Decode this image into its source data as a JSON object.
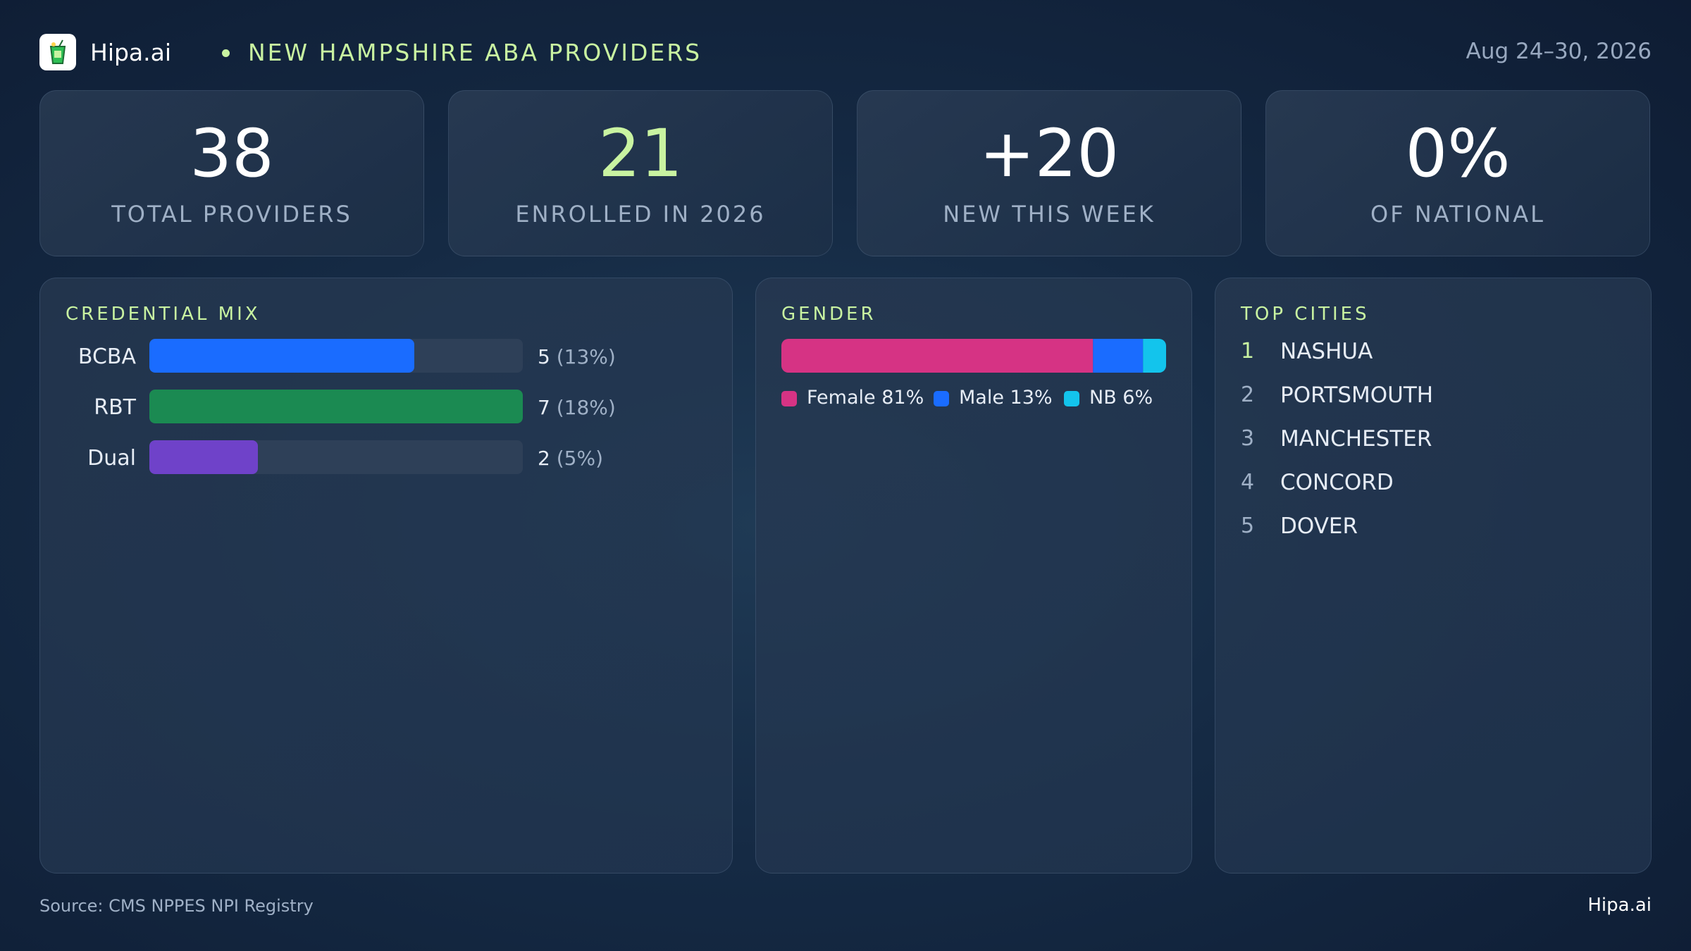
{
  "header": {
    "brand": "Hipa.ai",
    "title": "NEW HAMPSHIRE ABA PROVIDERS",
    "date_range": "Aug 24–30, 2026"
  },
  "kpis": [
    {
      "value": "38",
      "label": "TOTAL PROVIDERS"
    },
    {
      "value": "21",
      "label": "ENROLLED IN 2026"
    },
    {
      "value": "+20",
      "label": "NEW THIS WEEK"
    },
    {
      "value": "0%",
      "label": "OF NATIONAL"
    }
  ],
  "credential_mix": {
    "title": "CREDENTIAL MIX",
    "items": [
      {
        "label": "BCBA",
        "count": "5",
        "pct": "(13%)",
        "level": 0.71,
        "color": "#1a6cff"
      },
      {
        "label": "RBT",
        "count": "7",
        "pct": "(18%)",
        "level": 1.0,
        "color": "#1b8a52"
      },
      {
        "label": "Dual",
        "count": "2",
        "pct": "(5%)",
        "level": 0.29,
        "color": "#6f42c9"
      }
    ]
  },
  "gender": {
    "title": "GENDER",
    "segments": [
      {
        "label": "Female 81%",
        "share": 81,
        "color": "#d63384"
      },
      {
        "label": "Male 13%",
        "share": 13,
        "color": "#1a6cff"
      },
      {
        "label": "NB 6%",
        "share": 6,
        "color": "#13c4ec"
      }
    ]
  },
  "top_cities": {
    "title": "TOP CITIES",
    "items": [
      {
        "rank": "1",
        "name": "NASHUA"
      },
      {
        "rank": "2",
        "name": "PORTSMOUTH"
      },
      {
        "rank": "3",
        "name": "MANCHESTER"
      },
      {
        "rank": "4",
        "name": "CONCORD"
      },
      {
        "rank": "5",
        "name": "DOVER"
      }
    ]
  },
  "footer": {
    "source": "Source: CMS NPPES NPI Registry",
    "brand": "Hipa.ai"
  },
  "colors": {
    "accent": "#c9f3a1",
    "muted": "#9fb0c6"
  }
}
